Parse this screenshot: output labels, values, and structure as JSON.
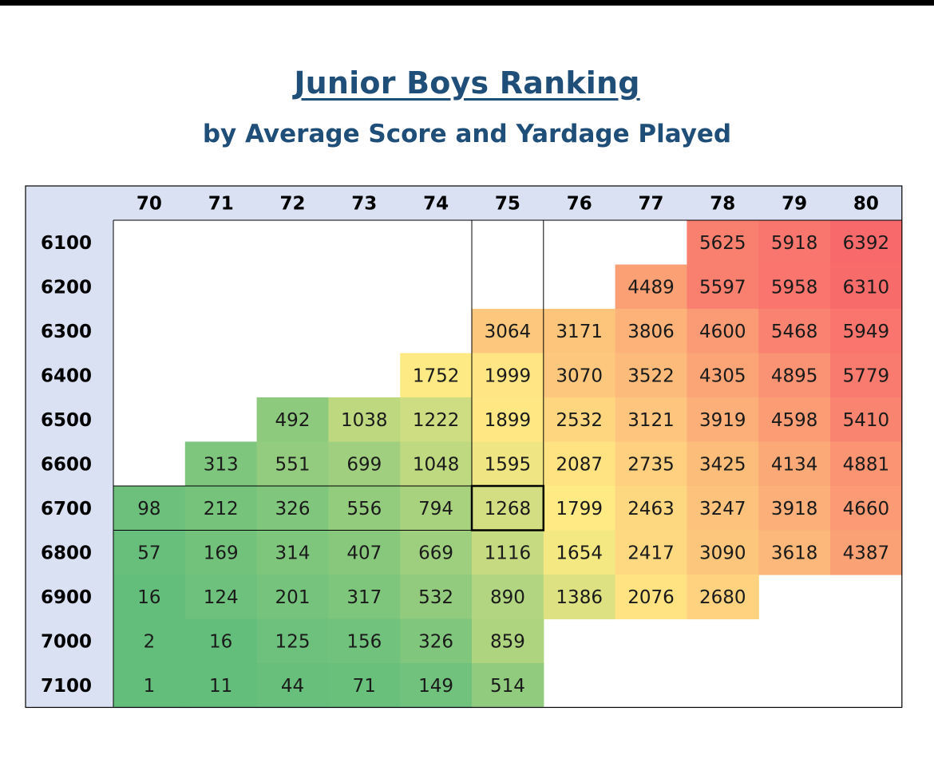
{
  "title": "Junior Boys Ranking",
  "subtitle": "by Average Score and Yardage Played",
  "chart_data": {
    "type": "heatmap",
    "title": "Junior Boys Ranking",
    "subtitle": "by Average Score and Yardage Played",
    "x_categories": [
      "70",
      "71",
      "72",
      "73",
      "74",
      "75",
      "76",
      "77",
      "78",
      "79",
      "80"
    ],
    "y_categories": [
      "6100",
      "6200",
      "6300",
      "6400",
      "6500",
      "6600",
      "6700",
      "6800",
      "6900",
      "7000",
      "7100"
    ],
    "values": [
      [
        null,
        null,
        null,
        null,
        null,
        null,
        null,
        null,
        5625,
        5918,
        6392
      ],
      [
        null,
        null,
        null,
        null,
        null,
        null,
        null,
        4489,
        5597,
        5958,
        6310
      ],
      [
        null,
        null,
        null,
        null,
        null,
        3064,
        3171,
        3806,
        4600,
        5468,
        5949
      ],
      [
        null,
        null,
        null,
        null,
        1752,
        1999,
        3070,
        3522,
        4305,
        4895,
        5779
      ],
      [
        null,
        null,
        492,
        1038,
        1222,
        1899,
        2532,
        3121,
        3919,
        4598,
        5410
      ],
      [
        null,
        313,
        551,
        699,
        1048,
        1595,
        2087,
        2735,
        3425,
        4134,
        4881
      ],
      [
        98,
        212,
        326,
        556,
        794,
        1268,
        1799,
        2463,
        3247,
        3918,
        4660
      ],
      [
        57,
        169,
        314,
        407,
        669,
        1116,
        1654,
        2417,
        3090,
        3618,
        4387
      ],
      [
        16,
        124,
        201,
        317,
        532,
        890,
        1386,
        2076,
        2680,
        null,
        null
      ],
      [
        2,
        16,
        125,
        156,
        326,
        859,
        null,
        null,
        null,
        null,
        null
      ],
      [
        1,
        11,
        44,
        71,
        149,
        514,
        null,
        null,
        null,
        null,
        null
      ]
    ],
    "color_scale": [
      "#63BE7B",
      "#FFEB84",
      "#F8696B"
    ],
    "highlighted_cell": {
      "row": "6700",
      "col": "75"
    },
    "header_background": "#DAE1F3"
  }
}
